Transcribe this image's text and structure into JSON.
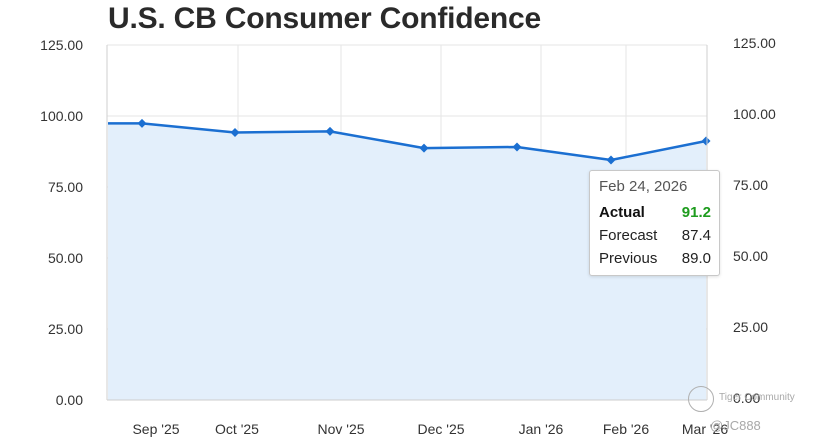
{
  "chart_data": {
    "type": "area",
    "title": "U.S. CB Consumer Confidence",
    "y_axis": {
      "min": 0,
      "max": 125,
      "ticks": [
        0,
        25,
        50,
        75,
        100,
        125
      ],
      "tick_labels": [
        "0.00",
        "25.00",
        "50.00",
        "75.00",
        "100.00",
        "125.00"
      ],
      "both_sides": true
    },
    "x_axis": {
      "tick_labels": [
        "Sep '25",
        "Oct '25",
        "Nov '25",
        "Dec '25",
        "Jan '26",
        "Feb '26",
        "Mar '26"
      ]
    },
    "grid": true,
    "series": [
      {
        "values": [
          97.4,
          97.4,
          94.2,
          94.6,
          88.7,
          89.1,
          84.5,
          91.2
        ],
        "color": "#1b6fd1",
        "fill": "#e3effb"
      }
    ]
  },
  "tooltip": {
    "date": "Feb 24, 2026",
    "rows": [
      {
        "label": "Actual",
        "value": "91.2"
      },
      {
        "label": "Forecast",
        "value": "87.4"
      },
      {
        "label": "Previous",
        "value": "89.0"
      }
    ]
  },
  "watermark": {
    "brand": "Tiger Community",
    "handle": "@JC888"
  }
}
